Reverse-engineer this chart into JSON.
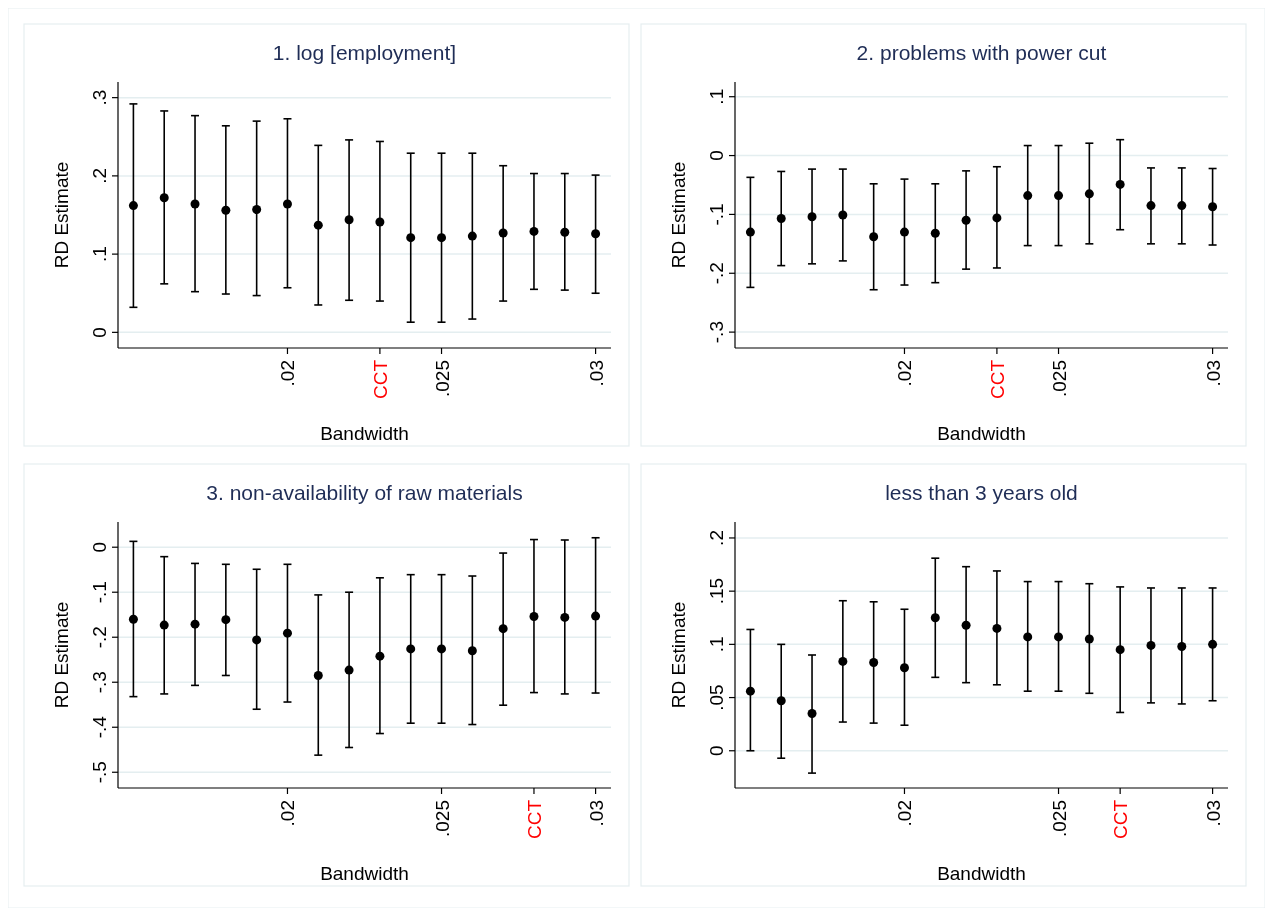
{
  "chart_data": [
    {
      "type": "scatter",
      "title": "1. log [employment]",
      "xlabel": "Bandwidth",
      "ylabel": "RD Estimate",
      "x": [
        0.015,
        0.016,
        0.017,
        0.018,
        0.019,
        0.02,
        0.021,
        0.022,
        0.023,
        0.024,
        0.025,
        0.026,
        0.027,
        0.028,
        0.029,
        0.03
      ],
      "series": [
        {
          "color": "#000000",
          "values": [
            0.162,
            0.172,
            0.164,
            0.156,
            0.157,
            0.164,
            0.137,
            0.144,
            0.141,
            0.121,
            0.121,
            0.123,
            0.127,
            0.129,
            0.128,
            0.126
          ],
          "errors": [
            [
              0.032,
              0.292
            ],
            [
              0.062,
              0.283
            ],
            [
              0.052,
              0.277
            ],
            [
              0.049,
              0.264
            ],
            [
              0.047,
              0.27
            ],
            [
              0.057,
              0.273
            ],
            [
              0.035,
              0.239
            ],
            [
              0.041,
              0.246
            ],
            [
              0.04,
              0.244
            ],
            [
              0.013,
              0.229
            ],
            [
              0.013,
              0.229
            ],
            [
              0.017,
              0.229
            ],
            [
              0.04,
              0.213
            ],
            [
              0.055,
              0.203
            ],
            [
              0.054,
              0.203
            ],
            [
              0.05,
              0.201
            ]
          ]
        }
      ],
      "xlim": [
        0.0145,
        0.0305
      ],
      "xticks": [
        {
          "value": 0.02,
          "label": ".02"
        },
        {
          "value": 0.023,
          "label": "CCT"
        },
        {
          "value": 0.025,
          "label": ".025"
        },
        {
          "value": 0.03,
          "label": ".03"
        }
      ],
      "ylim": [
        -0.02,
        0.32
      ],
      "yticks": [
        {
          "value": 0,
          "label": "0"
        },
        {
          "value": 0.1,
          "label": ".1"
        },
        {
          "value": 0.2,
          "label": ".2"
        },
        {
          "value": 0.3,
          "label": ".3"
        }
      ],
      "grid": "y",
      "marker": "circle"
    },
    {
      "type": "scatter",
      "title": "2. problems with power cut",
      "xlabel": "Bandwidth",
      "ylabel": "RD Estimate",
      "x": [
        0.015,
        0.016,
        0.017,
        0.018,
        0.019,
        0.02,
        0.021,
        0.022,
        0.023,
        0.024,
        0.025,
        0.026,
        0.027,
        0.028,
        0.029,
        0.03
      ],
      "series": [
        {
          "color": "#000000",
          "values": [
            -0.13,
            -0.107,
            -0.104,
            -0.101,
            -0.138,
            -0.13,
            -0.132,
            -0.11,
            -0.106,
            -0.068,
            -0.068,
            -0.065,
            -0.049,
            -0.085,
            -0.085,
            -0.087
          ],
          "errors": [
            [
              -0.224,
              -0.037
            ],
            [
              -0.187,
              -0.027
            ],
            [
              -0.184,
              -0.023
            ],
            [
              -0.179,
              -0.023
            ],
            [
              -0.228,
              -0.048
            ],
            [
              -0.22,
              -0.04
            ],
            [
              -0.216,
              -0.048
            ],
            [
              -0.193,
              -0.026
            ],
            [
              -0.191,
              -0.019
            ],
            [
              -0.153,
              0.017
            ],
            [
              -0.153,
              0.017
            ],
            [
              -0.15,
              0.021
            ],
            [
              -0.126,
              0.027
            ],
            [
              -0.15,
              -0.021
            ],
            [
              -0.15,
              -0.021
            ],
            [
              -0.152,
              -0.022
            ]
          ]
        }
      ],
      "xlim": [
        0.0145,
        0.0305
      ],
      "xticks": [
        {
          "value": 0.02,
          "label": ".02"
        },
        {
          "value": 0.023,
          "label": "CCT"
        },
        {
          "value": 0.025,
          "label": ".025"
        },
        {
          "value": 0.03,
          "label": ".03"
        }
      ],
      "ylim": [
        -0.327,
        0.125
      ],
      "yticks": [
        {
          "value": -0.3,
          "label": "-.3"
        },
        {
          "value": -0.2,
          "label": "-.2"
        },
        {
          "value": -0.1,
          "label": "-.1"
        },
        {
          "value": 0,
          "label": "0"
        },
        {
          "value": 0.1,
          "label": ".1"
        }
      ],
      "grid": "y",
      "marker": "circle"
    },
    {
      "type": "scatter",
      "title": "3. non-availability of raw materials",
      "xlabel": "Bandwidth",
      "ylabel": "RD Estimate",
      "x": [
        0.015,
        0.016,
        0.017,
        0.018,
        0.019,
        0.02,
        0.021,
        0.022,
        0.023,
        0.024,
        0.025,
        0.026,
        0.027,
        0.028,
        0.029,
        0.03
      ],
      "series": [
        {
          "color": "#000000",
          "values": [
            -0.16,
            -0.173,
            -0.171,
            -0.161,
            -0.206,
            -0.191,
            -0.285,
            -0.273,
            -0.242,
            -0.226,
            -0.226,
            -0.23,
            -0.181,
            -0.154,
            -0.156,
            -0.153
          ],
          "errors": [
            [
              -0.332,
              0.013
            ],
            [
              -0.326,
              -0.021
            ],
            [
              -0.307,
              -0.036
            ],
            [
              -0.285,
              -0.038
            ],
            [
              -0.36,
              -0.049
            ],
            [
              -0.344,
              -0.038
            ],
            [
              -0.462,
              -0.106
            ],
            [
              -0.445,
              -0.1
            ],
            [
              -0.414,
              -0.068
            ],
            [
              -0.391,
              -0.061
            ],
            [
              -0.391,
              -0.061
            ],
            [
              -0.394,
              -0.064
            ],
            [
              -0.351,
              -0.013
            ],
            [
              -0.323,
              0.017
            ],
            [
              -0.326,
              0.016
            ],
            [
              -0.324,
              0.021
            ]
          ]
        }
      ],
      "xlim": [
        0.0145,
        0.0305
      ],
      "xticks": [
        {
          "value": 0.02,
          "label": ".02"
        },
        {
          "value": 0.025,
          "label": ".025"
        },
        {
          "value": 0.028,
          "label": "CCT"
        },
        {
          "value": 0.03,
          "label": ".03"
        }
      ],
      "ylim": [
        -0.535,
        0.056
      ],
      "yticks": [
        {
          "value": -0.5,
          "label": "-.5"
        },
        {
          "value": -0.4,
          "label": "-.4"
        },
        {
          "value": -0.3,
          "label": "-.3"
        },
        {
          "value": -0.2,
          "label": "-.2"
        },
        {
          "value": -0.1,
          "label": "-.1"
        },
        {
          "value": 0,
          "label": "0"
        }
      ],
      "grid": "y",
      "marker": "circle"
    },
    {
      "type": "scatter",
      "title": "less than 3 years old",
      "xlabel": "Bandwidth",
      "ylabel": "RD Estimate",
      "x": [
        0.015,
        0.016,
        0.017,
        0.018,
        0.019,
        0.02,
        0.021,
        0.022,
        0.023,
        0.024,
        0.025,
        0.026,
        0.027,
        0.028,
        0.029,
        0.03
      ],
      "series": [
        {
          "color": "#000000",
          "values": [
            0.056,
            0.047,
            0.035,
            0.084,
            0.083,
            0.078,
            0.125,
            0.118,
            0.115,
            0.107,
            0.107,
            0.105,
            0.095,
            0.099,
            0.098,
            0.1
          ],
          "errors": [
            [
              0.0,
              0.114
            ],
            [
              -0.007,
              0.1
            ],
            [
              -0.021,
              0.09
            ],
            [
              0.027,
              0.141
            ],
            [
              0.026,
              0.14
            ],
            [
              0.024,
              0.133
            ],
            [
              0.069,
              0.181
            ],
            [
              0.064,
              0.173
            ],
            [
              0.062,
              0.169
            ],
            [
              0.056,
              0.159
            ],
            [
              0.056,
              0.159
            ],
            [
              0.054,
              0.157
            ],
            [
              0.036,
              0.154
            ],
            [
              0.045,
              0.153
            ],
            [
              0.044,
              0.153
            ],
            [
              0.047,
              0.153
            ]
          ]
        }
      ],
      "xlim": [
        0.0145,
        0.0305
      ],
      "xticks": [
        {
          "value": 0.02,
          "label": ".02"
        },
        {
          "value": 0.025,
          "label": ".025"
        },
        {
          "value": 0.027,
          "label": "CCT"
        },
        {
          "value": 0.03,
          "label": ".03"
        }
      ],
      "ylim": [
        -0.035,
        0.215
      ],
      "yticks": [
        {
          "value": 0,
          "label": "0"
        },
        {
          "value": 0.05,
          "label": ".05"
        },
        {
          "value": 0.1,
          "label": ".1"
        },
        {
          "value": 0.15,
          "label": ".15"
        },
        {
          "value": 0.2,
          "label": ".2"
        }
      ],
      "grid": "y",
      "marker": "circle"
    }
  ]
}
